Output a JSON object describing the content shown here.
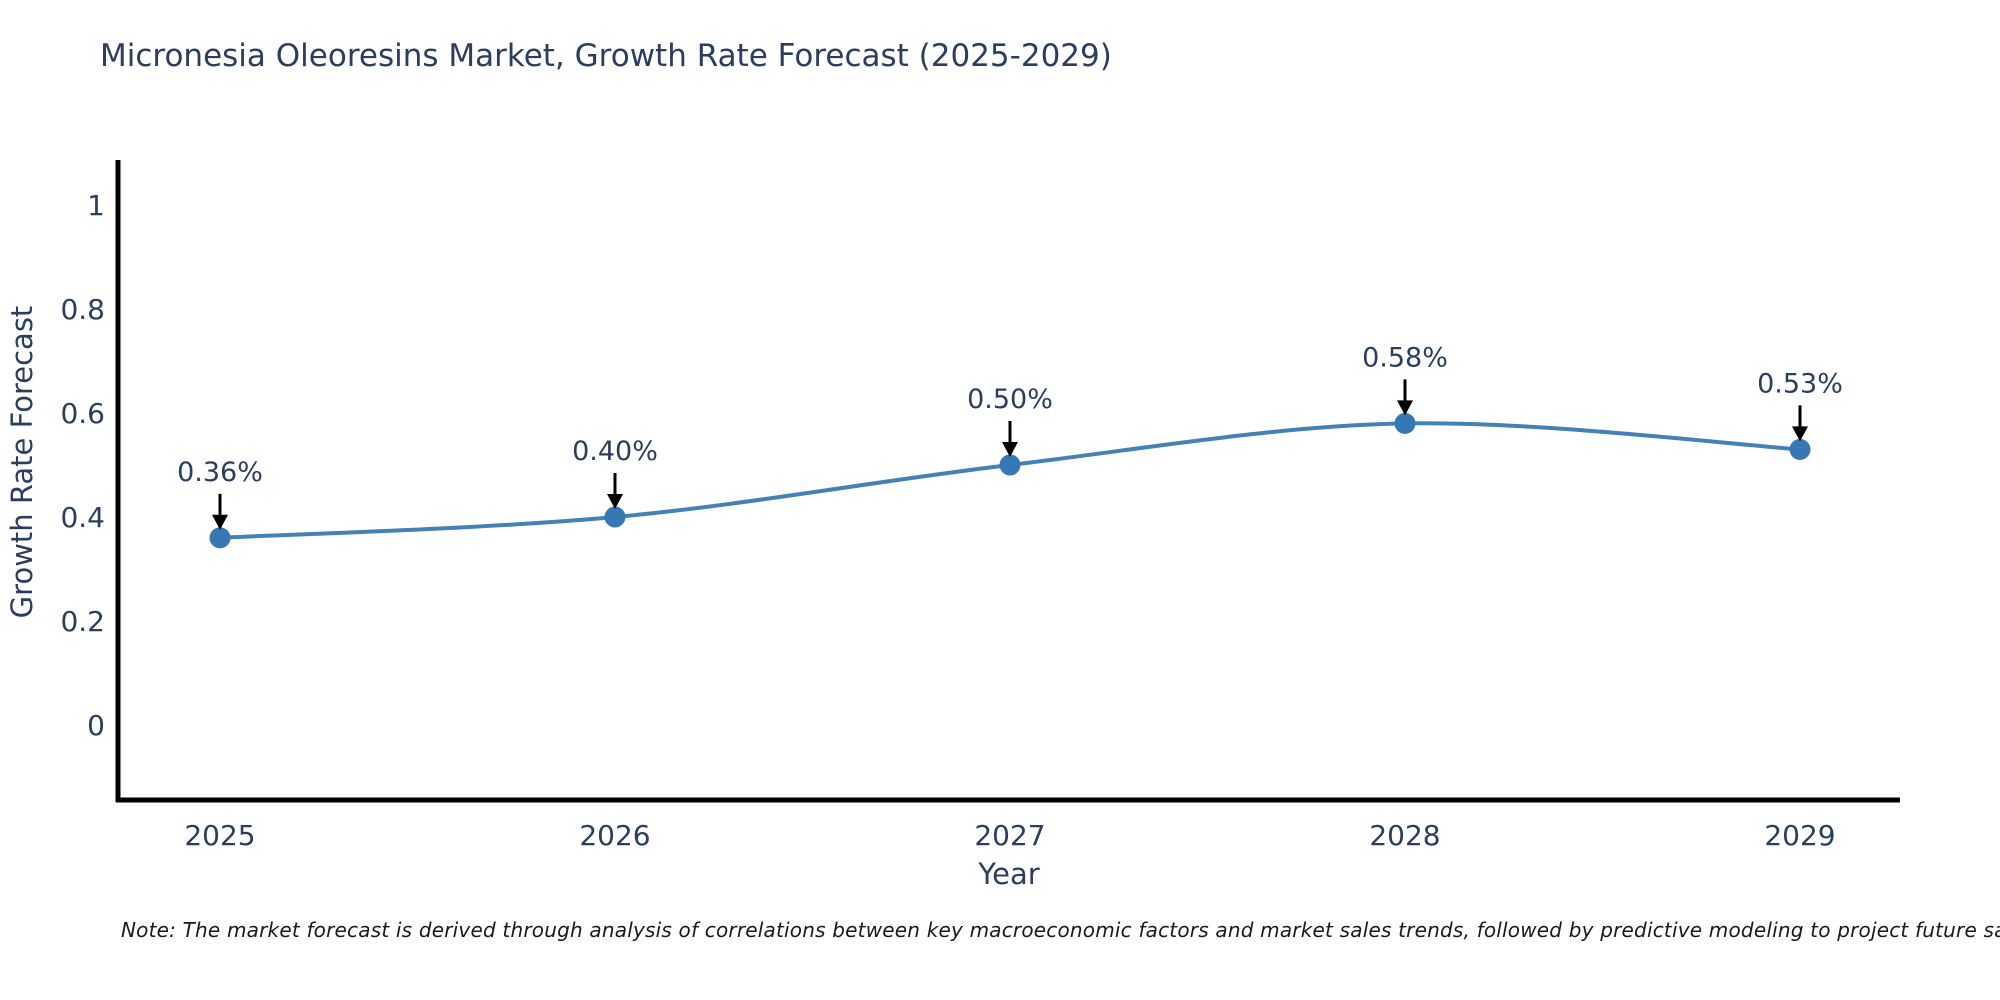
{
  "title": "Micronesia Oleoresins Market, Growth Rate Forecast (2025-2029)",
  "note": "Note: The market forecast is derived through analysis of correlations between key macroeconomic factors and market sales trends, followed by predictive modeling to project future sales",
  "chart_data": {
    "type": "line",
    "title": "Micronesia Oleoresins Market, Growth Rate Forecast (2025-2029)",
    "xlabel": "Year",
    "ylabel": "Growth Rate Forecast",
    "x": [
      2025,
      2026,
      2027,
      2028,
      2029
    ],
    "values": [
      0.36,
      0.4,
      0.5,
      0.58,
      0.53
    ],
    "point_labels": [
      "0.36%",
      "0.40%",
      "0.50%",
      "0.58%",
      "0.53%"
    ],
    "x_tick_labels": [
      "2025",
      "2026",
      "2027",
      "2028",
      "2029"
    ],
    "y_ticks": [
      0,
      0.2,
      0.4,
      0.6,
      0.8,
      1
    ],
    "y_tick_labels": [
      "0",
      "0.2",
      "0.4",
      "0.6",
      "0.8",
      "1"
    ],
    "ylim": [
      -0.15,
      1.09
    ],
    "line_shape": "spline",
    "grid": false,
    "legend": "none",
    "colors": {
      "line": "#4681b6",
      "marker": "#3678b4",
      "axis": "#000000",
      "text": "#2a3f5f",
      "annotation_text": "#2a3f5f",
      "annotation_arrow": "#000000",
      "background": "#ffffff"
    }
  }
}
